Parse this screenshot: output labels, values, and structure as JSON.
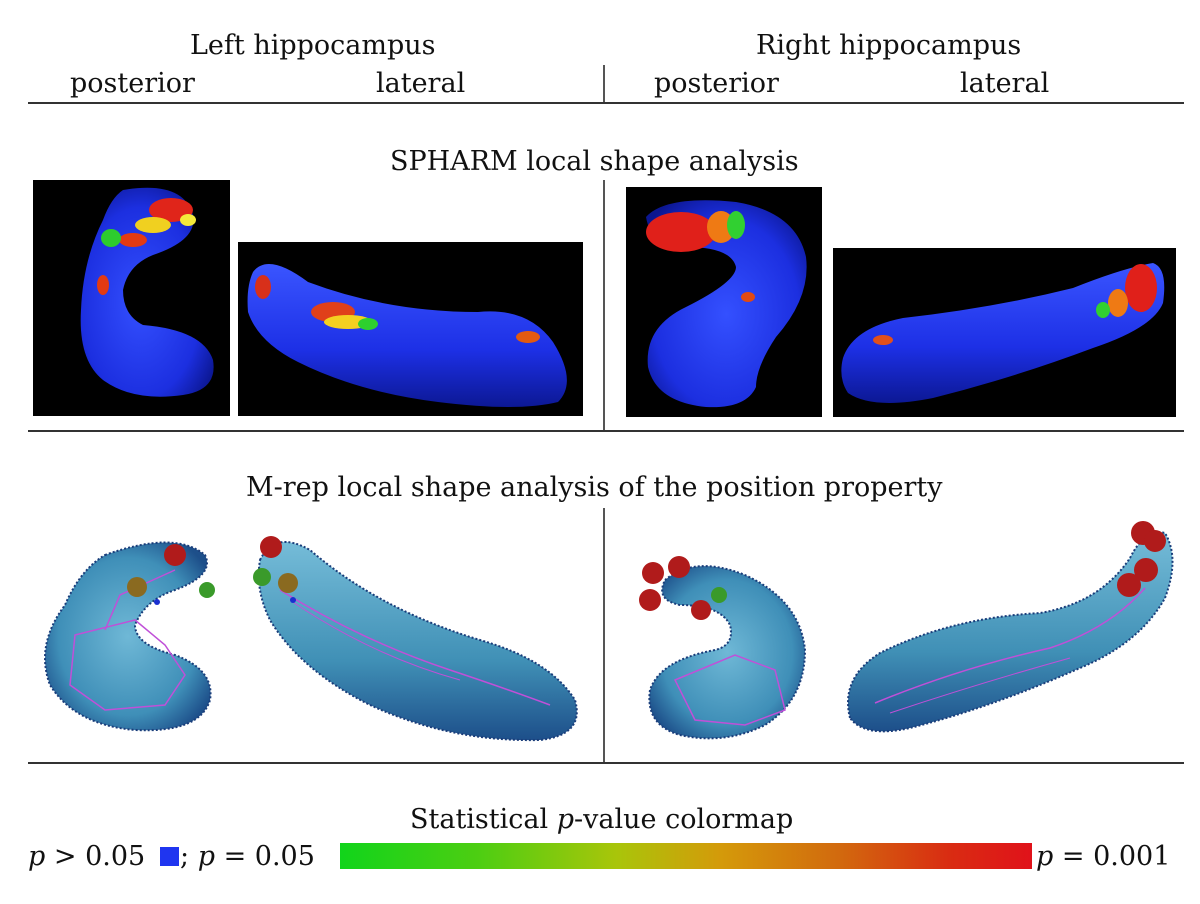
{
  "header": {
    "left_title": "Left hippocampus",
    "right_title": "Right hippocampus",
    "left_view_posterior": "posterior",
    "left_view_lateral": "lateral",
    "right_view_posterior": "posterior",
    "right_view_lateral": "lateral"
  },
  "spharm": {
    "title": "SPHARM local shape analysis"
  },
  "mrep": {
    "title": "M-rep local shape analysis of the position property"
  },
  "colormap": {
    "title_prefix": "Statistical ",
    "title_var": "p",
    "title_suffix": "-value colormap",
    "left_var": "p",
    "left_cond": " > 0.05",
    "mid_sep": " ; ",
    "mid_var": "p",
    "mid_cond": " = 0.05",
    "right_var": "p",
    "right_cond": " = 0.001",
    "blue_color": "#1f35f0",
    "green_color": "#11d41b",
    "red_color": "#e0121a"
  }
}
